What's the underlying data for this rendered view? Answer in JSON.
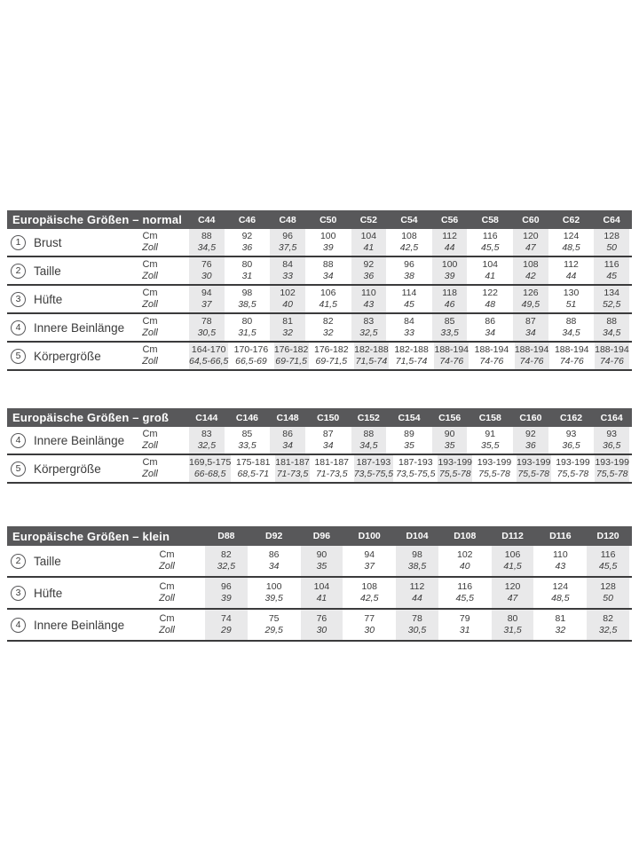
{
  "colors": {
    "header_bg": "#58585a",
    "header_text": "#ffffff",
    "column_stripe": "#e9e9ea",
    "rule": "#3b3b3c",
    "text": "#3b3b3b",
    "page_bg": "#ffffff"
  },
  "tables": [
    {
      "id": "normal",
      "title": "Europäische Größen – normal",
      "unit_labels": [
        "Cm",
        "Zoll"
      ],
      "columns": [
        "C44",
        "C46",
        "C48",
        "C50",
        "C52",
        "C54",
        "C56",
        "C58",
        "C60",
        "C62",
        "C64"
      ],
      "rows": [
        {
          "num": "1",
          "label": "Brust",
          "cm": [
            "88",
            "92",
            "96",
            "100",
            "104",
            "108",
            "112",
            "116",
            "120",
            "124",
            "128"
          ],
          "zoll": [
            "34,5",
            "36",
            "37,5",
            "39",
            "41",
            "42,5",
            "44",
            "45,5",
            "47",
            "48,5",
            "50"
          ]
        },
        {
          "num": "2",
          "label": "Taille",
          "cm": [
            "76",
            "80",
            "84",
            "88",
            "92",
            "96",
            "100",
            "104",
            "108",
            "112",
            "116"
          ],
          "zoll": [
            "30",
            "31",
            "33",
            "34",
            "36",
            "38",
            "39",
            "41",
            "42",
            "44",
            "45"
          ]
        },
        {
          "num": "3",
          "label": "Hüfte",
          "cm": [
            "94",
            "98",
            "102",
            "106",
            "110",
            "114",
            "118",
            "122",
            "126",
            "130",
            "134"
          ],
          "zoll": [
            "37",
            "38,5",
            "40",
            "41,5",
            "43",
            "45",
            "46",
            "48",
            "49,5",
            "51",
            "52,5"
          ]
        },
        {
          "num": "4",
          "label": "Innere Beinlänge",
          "cm": [
            "78",
            "80",
            "81",
            "82",
            "83",
            "84",
            "85",
            "86",
            "87",
            "88",
            "88"
          ],
          "zoll": [
            "30,5",
            "31,5",
            "32",
            "32",
            "32,5",
            "33",
            "33,5",
            "34",
            "34",
            "34,5",
            "34,5"
          ]
        },
        {
          "num": "5",
          "label": "Körpergröße",
          "cm": [
            "164-170",
            "170-176",
            "176-182",
            "176-182",
            "182-188",
            "182-188",
            "188-194",
            "188-194",
            "188-194",
            "188-194",
            "188-194"
          ],
          "zoll": [
            "64,5-66,5",
            "66,5-69",
            "69-71,5",
            "69-71,5",
            "71,5-74",
            "71,5-74",
            "74-76",
            "74-76",
            "74-76",
            "74-76",
            "74-76"
          ]
        }
      ]
    },
    {
      "id": "gross",
      "title": "Europäische Größen – groß",
      "unit_labels": [
        "Cm",
        "Zoll"
      ],
      "columns": [
        "C144",
        "C146",
        "C148",
        "C150",
        "C152",
        "C154",
        "C156",
        "C158",
        "C160",
        "C162",
        "C164"
      ],
      "rows": [
        {
          "num": "4",
          "label": "Innere Beinlänge",
          "cm": [
            "83",
            "85",
            "86",
            "87",
            "88",
            "89",
            "90",
            "91",
            "92",
            "93",
            "93"
          ],
          "zoll": [
            "32,5",
            "33,5",
            "34",
            "34",
            "34,5",
            "35",
            "35",
            "35,5",
            "36",
            "36,5",
            "36,5"
          ]
        },
        {
          "num": "5",
          "label": "Körpergröße",
          "cm": [
            "169,5-175",
            "175-181",
            "181-187",
            "181-187",
            "187-193",
            "187-193",
            "193-199",
            "193-199",
            "193-199",
            "193-199",
            "193-199"
          ],
          "zoll": [
            "66-68,5",
            "68,5-71",
            "71-73,5",
            "71-73,5",
            "73,5-75,5",
            "73,5-75,5",
            "75,5-78",
            "75,5-78",
            "75,5-78",
            "75,5-78",
            "75,5-78"
          ]
        }
      ]
    },
    {
      "id": "klein",
      "title": "Europäische Größen – klein",
      "unit_labels": [
        "Cm",
        "Zoll"
      ],
      "columns": [
        "D88",
        "D92",
        "D96",
        "D100",
        "D104",
        "D108",
        "D112",
        "D116",
        "D120"
      ],
      "rows": [
        {
          "num": "2",
          "label": "Taille",
          "cm": [
            "82",
            "86",
            "90",
            "94",
            "98",
            "102",
            "106",
            "110",
            "116"
          ],
          "zoll": [
            "32,5",
            "34",
            "35",
            "37",
            "38,5",
            "40",
            "41,5",
            "43",
            "45,5"
          ]
        },
        {
          "num": "3",
          "label": "Hüfte",
          "cm": [
            "96",
            "100",
            "104",
            "108",
            "112",
            "116",
            "120",
            "124",
            "128"
          ],
          "zoll": [
            "39",
            "39,5",
            "41",
            "42,5",
            "44",
            "45,5",
            "47",
            "48,5",
            "50"
          ]
        },
        {
          "num": "4",
          "label": "Innere Beinlänge",
          "cm": [
            "74",
            "75",
            "76",
            "77",
            "78",
            "79",
            "80",
            "81",
            "82"
          ],
          "zoll": [
            "29",
            "29,5",
            "30",
            "30",
            "30,5",
            "31",
            "31,5",
            "32",
            "32,5"
          ]
        }
      ]
    }
  ]
}
